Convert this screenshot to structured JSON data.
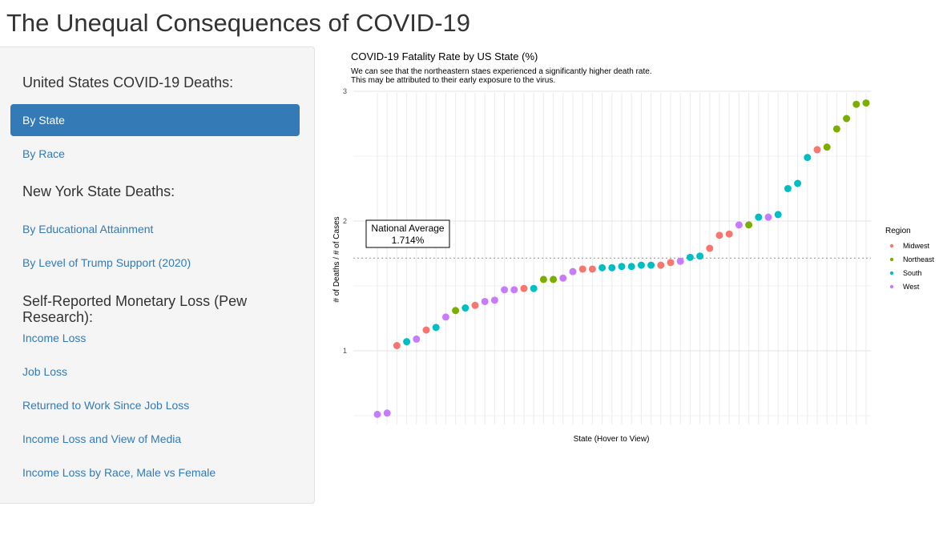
{
  "page": {
    "title": "The Unequal Consequences of COVID-19"
  },
  "sidebar": {
    "section1": {
      "heading": "United States COVID-19 Deaths:",
      "items": [
        {
          "label": "By State",
          "active": true
        },
        {
          "label": "By Race",
          "active": false
        }
      ]
    },
    "section2": {
      "heading": "New York State Deaths:",
      "items": [
        {
          "label": "By Educational Attainment"
        },
        {
          "label": "By Level of Trump Support (2020)"
        }
      ]
    },
    "section3": {
      "heading_line1": "Self-Reported Monetary Loss (Pew",
      "heading_line2": "Research):",
      "items": [
        {
          "label": "Income Loss"
        },
        {
          "label": "Job Loss"
        },
        {
          "label": "Returned to Work Since Job Loss"
        },
        {
          "label": "Income Loss and View of Media"
        },
        {
          "label": "Income Loss by Race, Male vs Female"
        }
      ]
    }
  },
  "chart_data": {
    "type": "scatter",
    "title": "COVID-19 Fatality Rate by US State (%)",
    "subtitle_line1": "We can see that the northeastern staes experienced a significantly higher death rate.",
    "subtitle_line2": "This may be attributed to their early exposure to the virus.",
    "xlabel": "State (Hover to View)",
    "ylabel": "# of Deaths / # of Cases",
    "y_ticks": [
      1,
      2,
      3
    ],
    "ylim": [
      0.48,
      3.03
    ],
    "grid": true,
    "reference_line": {
      "value": 1.714,
      "label_line1": "National Average",
      "label_line2": "1.714%"
    },
    "legend": {
      "title": "Region",
      "position": "right",
      "entries": [
        {
          "name": "Midwest",
          "color": "#F8766D"
        },
        {
          "name": "Northeast",
          "color": "#7CAE00"
        },
        {
          "name": "South",
          "color": "#00BFC4"
        },
        {
          "name": "West",
          "color": "#C77CFF"
        }
      ]
    },
    "points": [
      {
        "rank": 1,
        "value": 0.51,
        "region": "West"
      },
      {
        "rank": 2,
        "value": 0.52,
        "region": "West"
      },
      {
        "rank": 3,
        "value": 1.04,
        "region": "Midwest"
      },
      {
        "rank": 4,
        "value": 1.07,
        "region": "South"
      },
      {
        "rank": 5,
        "value": 1.09,
        "region": "West"
      },
      {
        "rank": 6,
        "value": 1.16,
        "region": "Midwest"
      },
      {
        "rank": 7,
        "value": 1.18,
        "region": "South"
      },
      {
        "rank": 8,
        "value": 1.26,
        "region": "West"
      },
      {
        "rank": 9,
        "value": 1.31,
        "region": "Northeast"
      },
      {
        "rank": 10,
        "value": 1.33,
        "region": "South"
      },
      {
        "rank": 11,
        "value": 1.35,
        "region": "Midwest"
      },
      {
        "rank": 12,
        "value": 1.38,
        "region": "West"
      },
      {
        "rank": 13,
        "value": 1.39,
        "region": "West"
      },
      {
        "rank": 14,
        "value": 1.47,
        "region": "West"
      },
      {
        "rank": 15,
        "value": 1.47,
        "region": "West"
      },
      {
        "rank": 16,
        "value": 1.48,
        "region": "Midwest"
      },
      {
        "rank": 17,
        "value": 1.48,
        "region": "South"
      },
      {
        "rank": 18,
        "value": 1.55,
        "region": "Northeast"
      },
      {
        "rank": 19,
        "value": 1.55,
        "region": "Northeast"
      },
      {
        "rank": 20,
        "value": 1.56,
        "region": "West"
      },
      {
        "rank": 21,
        "value": 1.61,
        "region": "West"
      },
      {
        "rank": 22,
        "value": 1.63,
        "region": "Midwest"
      },
      {
        "rank": 23,
        "value": 1.63,
        "region": "Midwest"
      },
      {
        "rank": 24,
        "value": 1.64,
        "region": "South"
      },
      {
        "rank": 25,
        "value": 1.64,
        "region": "South"
      },
      {
        "rank": 26,
        "value": 1.65,
        "region": "South"
      },
      {
        "rank": 27,
        "value": 1.65,
        "region": "South"
      },
      {
        "rank": 28,
        "value": 1.66,
        "region": "South"
      },
      {
        "rank": 29,
        "value": 1.66,
        "region": "South"
      },
      {
        "rank": 30,
        "value": 1.66,
        "region": "Midwest"
      },
      {
        "rank": 31,
        "value": 1.68,
        "region": "Midwest"
      },
      {
        "rank": 32,
        "value": 1.69,
        "region": "West"
      },
      {
        "rank": 33,
        "value": 1.72,
        "region": "South"
      },
      {
        "rank": 34,
        "value": 1.73,
        "region": "South"
      },
      {
        "rank": 35,
        "value": 1.79,
        "region": "Midwest"
      },
      {
        "rank": 36,
        "value": 1.89,
        "region": "Midwest"
      },
      {
        "rank": 37,
        "value": 1.9,
        "region": "Midwest"
      },
      {
        "rank": 38,
        "value": 1.97,
        "region": "West"
      },
      {
        "rank": 39,
        "value": 1.97,
        "region": "Northeast"
      },
      {
        "rank": 40,
        "value": 2.03,
        "region": "South"
      },
      {
        "rank": 41,
        "value": 2.03,
        "region": "West"
      },
      {
        "rank": 42,
        "value": 2.05,
        "region": "South"
      },
      {
        "rank": 43,
        "value": 2.25,
        "region": "South"
      },
      {
        "rank": 44,
        "value": 2.29,
        "region": "South"
      },
      {
        "rank": 45,
        "value": 2.49,
        "region": "South"
      },
      {
        "rank": 46,
        "value": 2.55,
        "region": "Midwest"
      },
      {
        "rank": 47,
        "value": 2.57,
        "region": "Northeast"
      },
      {
        "rank": 48,
        "value": 2.71,
        "region": "Northeast"
      },
      {
        "rank": 49,
        "value": 2.79,
        "region": "Northeast"
      },
      {
        "rank": 50,
        "value": 2.9,
        "region": "Northeast"
      },
      {
        "rank": 51,
        "value": 2.91,
        "region": "Northeast"
      }
    ]
  }
}
